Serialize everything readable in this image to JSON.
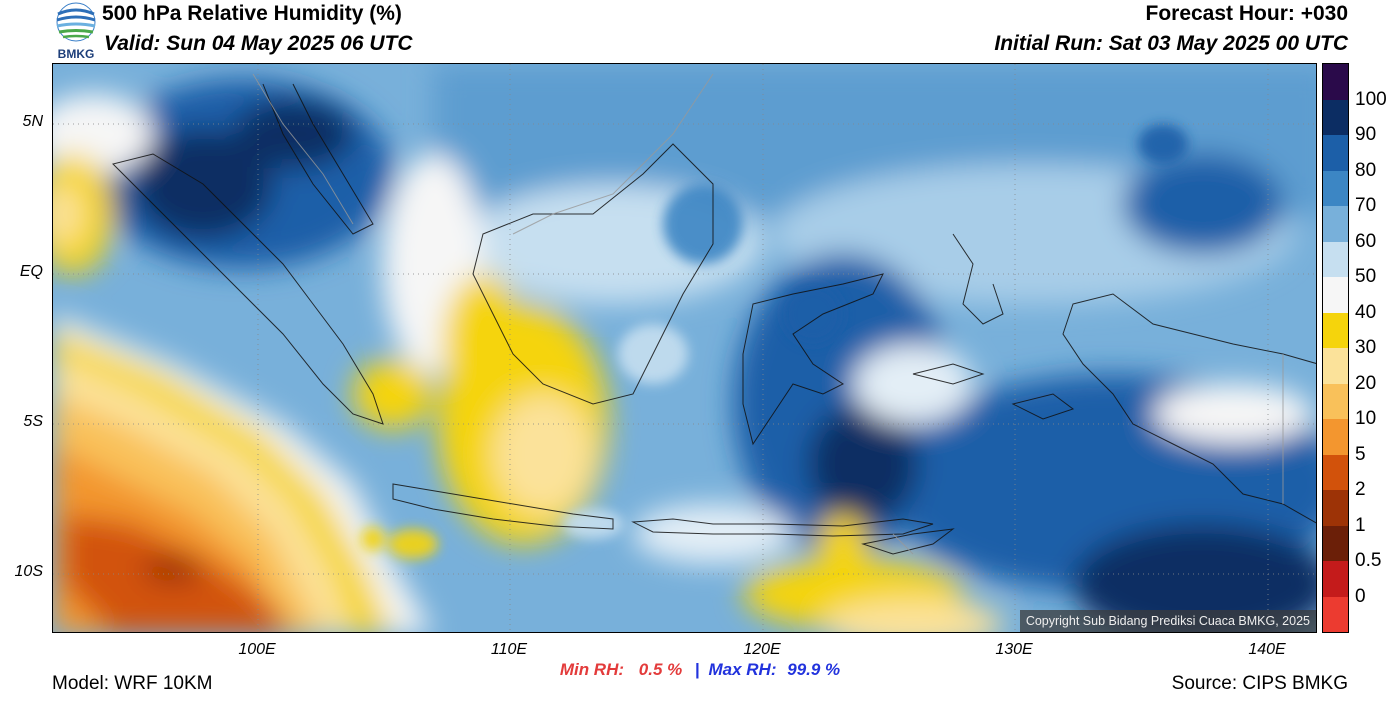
{
  "header": {
    "title": "500 hPa Relative Humidity (%)",
    "valid": "Valid: Sun 04 May 2025 06 UTC",
    "forecast_hour": "Forecast Hour: +030",
    "initial_run": "Initial Run: Sat 03 May 2025 00 UTC",
    "logo_text": "BMKG"
  },
  "map": {
    "lat_labels": [
      "5N",
      "EQ",
      "5S",
      "10S"
    ],
    "lon_labels": [
      "100E",
      "110E",
      "120E",
      "130E",
      "140E"
    ],
    "copyright": "Copyright Sub Bidang Prediksi Cuaca BMKG, 2025"
  },
  "stats": {
    "min_label": "Min RH:",
    "min_value": "0.5 %",
    "separator": "|",
    "max_label": "Max RH:",
    "max_value": "99.9 %"
  },
  "legend": {
    "labels": [
      "100",
      "90",
      "80",
      "70",
      "60",
      "50",
      "40",
      "30",
      "20",
      "10",
      "5",
      "2",
      "1",
      "0.5",
      "0"
    ],
    "colors": [
      "#2a0a4a",
      "#0c2d63",
      "#1c5fa8",
      "#3c86c4",
      "#78b0da",
      "#c6dff0",
      "#f6f6f6",
      "#f5d40c",
      "#fbe29a",
      "#f9c15a",
      "#f3962f",
      "#d2520b",
      "#9d3306",
      "#6b1f08",
      "#c41b1b",
      "#ec3b30"
    ]
  },
  "footer": {
    "model": "Model: WRF 10KM",
    "source": "Source: CIPS BMKG"
  }
}
